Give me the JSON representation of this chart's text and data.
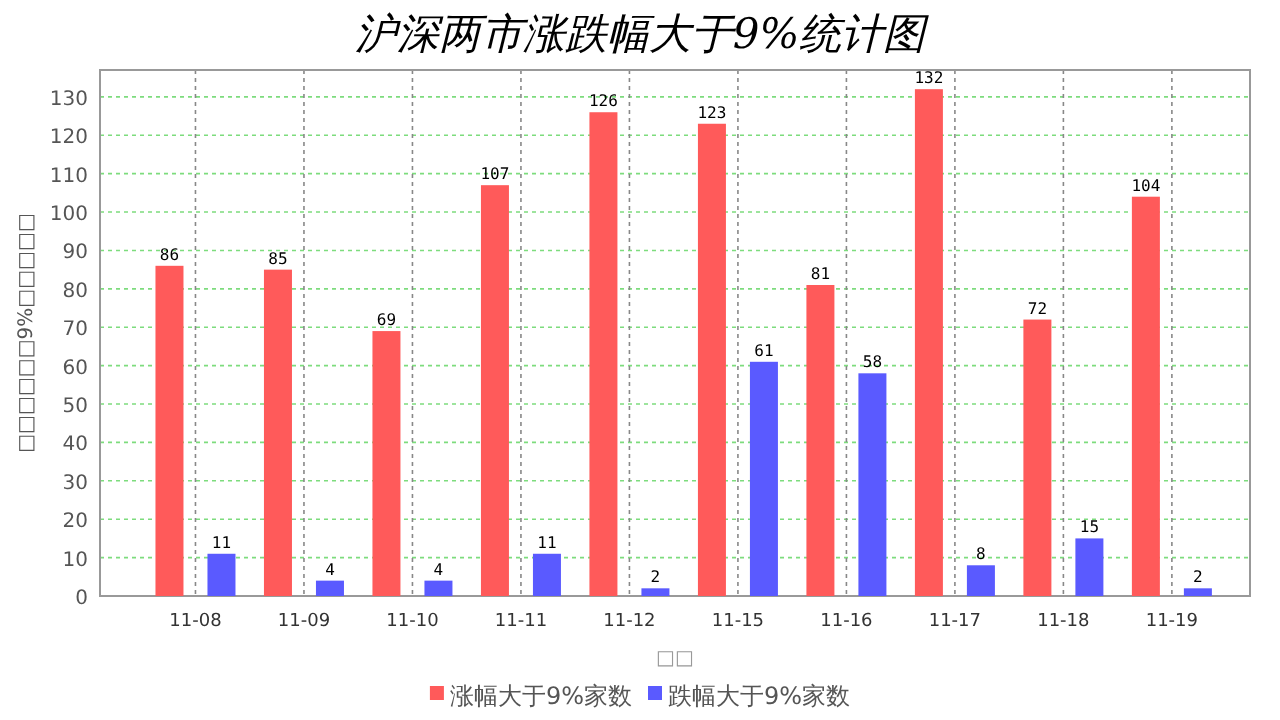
{
  "chart_data": {
    "type": "bar",
    "title": "沪深两市涨跌幅大于9%统计图",
    "xlabel": "□□",
    "ylabel": "□□□□□□9%□□□□□",
    "categories": [
      "11-08",
      "11-09",
      "11-10",
      "11-11",
      "11-12",
      "11-15",
      "11-16",
      "11-17",
      "11-18",
      "11-19"
    ],
    "series": [
      {
        "name": "涨幅大于9%家数",
        "color": "#ff5a5a",
        "values": [
          86,
          85,
          69,
          107,
          126,
          123,
          81,
          132,
          72,
          104
        ]
      },
      {
        "name": "跌幅大于9%家数",
        "color": "#5a5aff",
        "values": [
          11,
          4,
          4,
          11,
          2,
          61,
          58,
          8,
          15,
          2
        ]
      }
    ],
    "ylim": [
      0,
      137
    ],
    "yticks": [
      0,
      10,
      20,
      30,
      40,
      50,
      60,
      70,
      80,
      90,
      100,
      110,
      120,
      130
    ],
    "grid": true,
    "legend": "bottom",
    "data_labels": true
  }
}
